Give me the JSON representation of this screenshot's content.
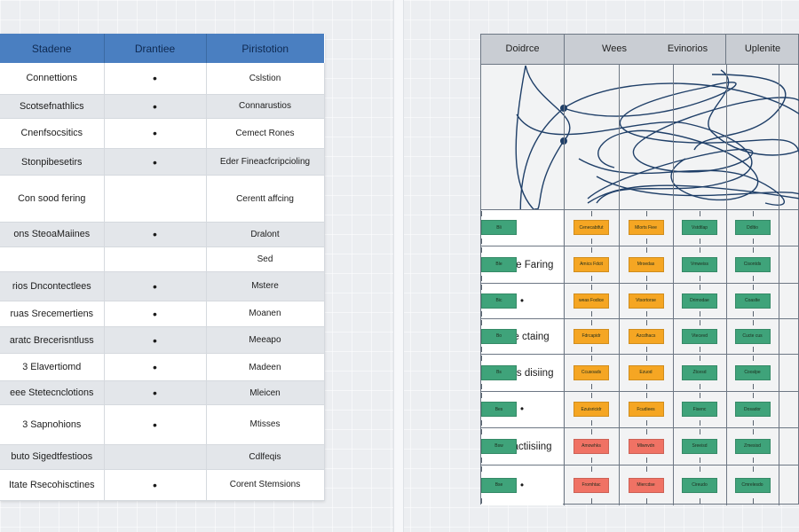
{
  "left_table": {
    "headers": [
      "Stadene",
      "Drantiee",
      "Piristotion"
    ],
    "rows": [
      {
        "c1": "Connettions",
        "c2": "•",
        "c3": "Cslstion"
      },
      {
        "c1": "Scotsefnathlics",
        "c2": "•",
        "c3": "Connarustios"
      },
      {
        "c1": "Cnenfsocsitics",
        "c2": "•",
        "c3": "Cemect Rones"
      },
      {
        "c1": "Stonpibesetirs",
        "c2": "•",
        "c3": "Eder Fineacfcripcioling"
      },
      {
        "c1": "Con sood fering",
        "c2": "",
        "c3": "Cerentt affcing"
      },
      {
        "c1": "ons SteoaMaiines",
        "c2": "•",
        "c3": "Dralont"
      },
      {
        "c1": "",
        "c2": "",
        "c3": "Sed"
      },
      {
        "c1": "rios Dncontectlees",
        "c2": "•",
        "c3": "Mstere"
      },
      {
        "c1": "ruas Srecemertiens",
        "c2": "•",
        "c3": "Moanen"
      },
      {
        "c1": "aratc Brecerisntluss",
        "c2": "•",
        "c3": "Meeapo"
      },
      {
        "c1": "3 Elavertiomd",
        "c2": "•",
        "c3": "Madeen"
      },
      {
        "c1": "eee Stetecnclotions",
        "c2": "•",
        "c3": "Mleicen"
      },
      {
        "c1": "3 Sapnohions",
        "c2": "•",
        "c3": "Mtisses"
      },
      {
        "c1": "buto Sigedtfestioos",
        "c2": "",
        "c3": "Cdlfeqis"
      },
      {
        "c1": "Itate Rsecohisctines",
        "c2": "•",
        "c3": "Corent Stemsions"
      }
    ]
  },
  "right_grid": {
    "headers": [
      "Doidrce",
      "Wees",
      "Evinorios",
      "Uplenite"
    ],
    "row_labels": [
      "",
      "Fulffee Faring",
      "•",
      "Cutfe ctaing",
      "Esifres disiing",
      "•",
      "Fedfactiisiing",
      "•"
    ],
    "column_blocks": [
      [
        {
          "label": "Cenecabtfut",
          "color": "#f5a623"
        },
        {
          "label": "Amics Fdcit",
          "color": "#f5a623"
        },
        {
          "label": "weas Fodice",
          "color": "#f5a623"
        },
        {
          "label": "Fdrcapidr",
          "color": "#f5a623"
        },
        {
          "label": "Ccusoads",
          "color": "#f5a623"
        },
        {
          "label": "Ezuisricidr",
          "color": "#f5a623"
        },
        {
          "label": "Amowhks",
          "color": "#f07264"
        },
        {
          "label": "Fromhtac",
          "color": "#f07264"
        }
      ],
      [
        {
          "label": "Mlorts Fiee",
          "color": "#f5a623"
        },
        {
          "label": "Mroedas",
          "color": "#f5a623"
        },
        {
          "label": "Vtsortorse",
          "color": "#f5a623"
        },
        {
          "label": "Azcdhacs",
          "color": "#f5a623"
        },
        {
          "label": "Ezuod",
          "color": "#f5a623"
        },
        {
          "label": "Fcudiees",
          "color": "#f5a623"
        },
        {
          "label": "Mlwnvdn",
          "color": "#f07264"
        },
        {
          "label": "Miercdse",
          "color": "#f07264"
        }
      ],
      [
        {
          "label": "Vstdtlap",
          "color": "#3fa37a"
        },
        {
          "label": "Vmweiss",
          "color": "#3fa37a"
        },
        {
          "label": "Drimodae",
          "color": "#3fa37a"
        },
        {
          "label": "Vtecevd",
          "color": "#3fa37a"
        },
        {
          "label": "Ztcesd",
          "color": "#3fa37a"
        },
        {
          "label": "Fisenc",
          "color": "#3fa37a"
        },
        {
          "label": "Sreeisd",
          "color": "#3fa37a"
        },
        {
          "label": "Cireudo",
          "color": "#3fa37a"
        }
      ],
      [
        {
          "label": "Ddltio",
          "color": "#3fa37a"
        },
        {
          "label": "Cisontds",
          "color": "#3fa37a"
        },
        {
          "label": "Coaslte",
          "color": "#3fa37a"
        },
        {
          "label": "Cucte cus",
          "color": "#3fa37a"
        },
        {
          "label": "Cooslpe",
          "color": "#3fa37a"
        },
        {
          "label": "Dosador",
          "color": "#3fa37a"
        },
        {
          "label": "Zmesisd",
          "color": "#3fa37a"
        },
        {
          "label": "Cmrelesdo",
          "color": "#3fa37a"
        }
      ],
      [
        {
          "label": "Bli",
          "color": "#3fa37a"
        },
        {
          "label": "Ble",
          "color": "#3fa37a"
        },
        {
          "label": "Bic",
          "color": "#3fa37a"
        },
        {
          "label": "Bo",
          "color": "#3fa37a"
        },
        {
          "label": "Bs",
          "color": "#3fa37a"
        },
        {
          "label": "Bes",
          "color": "#3fa37a"
        },
        {
          "label": "Bsw",
          "color": "#3fa37a"
        },
        {
          "label": "Bse",
          "color": "#3fa37a"
        }
      ]
    ],
    "curve_color": "#1f3f68"
  }
}
